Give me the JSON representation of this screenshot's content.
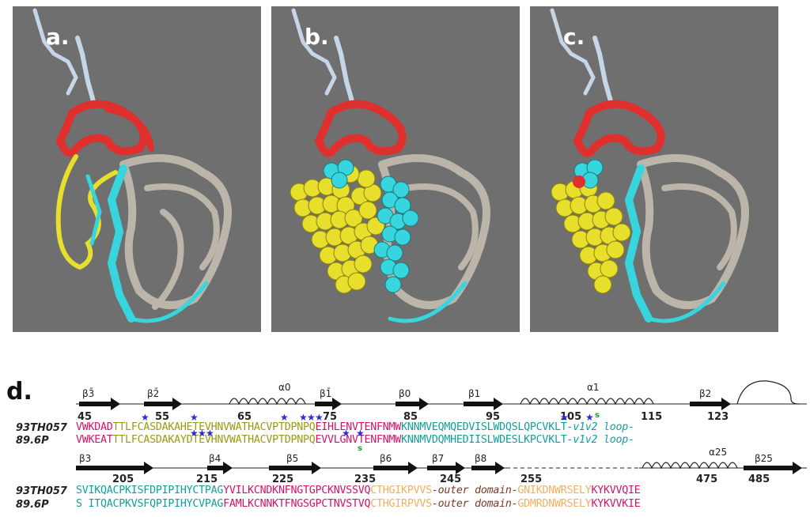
{
  "panels": [
    {
      "label": "a."
    },
    {
      "label": "b."
    },
    {
      "label": "c."
    }
  ],
  "panel_d_label": "d.",
  "colors": {
    "background_panel": "#6f6f6f",
    "strand_red": "#e0302e",
    "yellow": "#e8de2c",
    "cyan": "#37d6de",
    "light_blue": "#c6d6e6",
    "tan": "#bcb6aa",
    "seq_magenta": "#d6126b",
    "seq_olive": "#9a9a12",
    "seq_teal": "#129e9e",
    "seq_orange": "#f0b060",
    "seq_brown": "#7a3a2a"
  },
  "ss_row1": {
    "labels": [
      "β3̄",
      "β2̄",
      "α0",
      "β1̄",
      "β0",
      "β1",
      "α1",
      "β2"
    ],
    "positions": [
      "45",
      "55",
      "65",
      "75",
      "85",
      "95",
      "105",
      "115",
      "123"
    ]
  },
  "ss_row2": {
    "labels": [
      "β3",
      "β4",
      "β5",
      "β6",
      "β7",
      "β8",
      "α25",
      "β25"
    ],
    "positions": [
      "205",
      "215",
      "225",
      "235",
      "245",
      "255",
      "475",
      "485"
    ]
  },
  "rows": {
    "r1_name": "93TH057",
    "r2_name": "89.6P",
    "r3_name": "93TH057",
    "r4_name": "89.6P",
    "r1": [
      {
        "t": "VWKDAD",
        "c": "seq_magenta"
      },
      {
        "t": "TTLFCASDAKAHETEVHNVWATHACVPTDPNPQ",
        "c": "seq_olive"
      },
      {
        "t": "EIHLENVTENFNMW",
        "c": "seq_magenta"
      },
      {
        "t": "KNNMVEQMQEDVISLWDQSLQPCVKLT",
        "c": "seq_teal"
      },
      {
        "t": "-v1v2 loop-",
        "c": "seq_teal",
        "i": true
      }
    ],
    "r2": [
      {
        "t": "VWKEAT",
        "c": "seq_magenta"
      },
      {
        "t": "TTLFCASDAKAYDTEVHNVWATHACVPTDPNPQ",
        "c": "seq_olive"
      },
      {
        "t": "EVVLGNVTENFNMW",
        "c": "seq_magenta"
      },
      {
        "t": "KNNMVDQMHEDIISLWDESLKPCVKLT",
        "c": "seq_teal"
      },
      {
        "t": "-v1v2 loop-",
        "c": "seq_teal",
        "i": true
      }
    ],
    "r3": [
      {
        "t": "SVIKQACPKISFDPIPIHYCTPAG",
        "c": "seq_teal"
      },
      {
        "t": "YVILKCNDKNFNGTGPCKNVSSVQ",
        "c": "seq_magenta"
      },
      {
        "t": "CTHGIKPVVS",
        "c": "seq_orange"
      },
      {
        "t": "-outer domain-",
        "c": "seq_brown",
        "i": true
      },
      {
        "t": "GNIKDNWRSELY",
        "c": "seq_orange"
      },
      {
        "t": "KYKVVQIE",
        "c": "seq_magenta"
      }
    ],
    "r4": [
      {
        "t": "S ITQACPKVSFQPIPIHYCVPAG",
        "c": "seq_teal"
      },
      {
        "t": "FAMLKCNNKTFNGSGPCTNVSTVQ",
        "c": "seq_magenta"
      },
      {
        "t": "CTHGIRPVVS",
        "c": "seq_orange"
      },
      {
        "t": "-outer domain-",
        "c": "seq_brown",
        "i": true
      },
      {
        "t": "GDMRDNWRSELY",
        "c": "seq_orange"
      },
      {
        "t": "KYKVVKIE",
        "c": "seq_magenta"
      }
    ]
  },
  "marks": {
    "star": "★",
    "s": "s"
  }
}
